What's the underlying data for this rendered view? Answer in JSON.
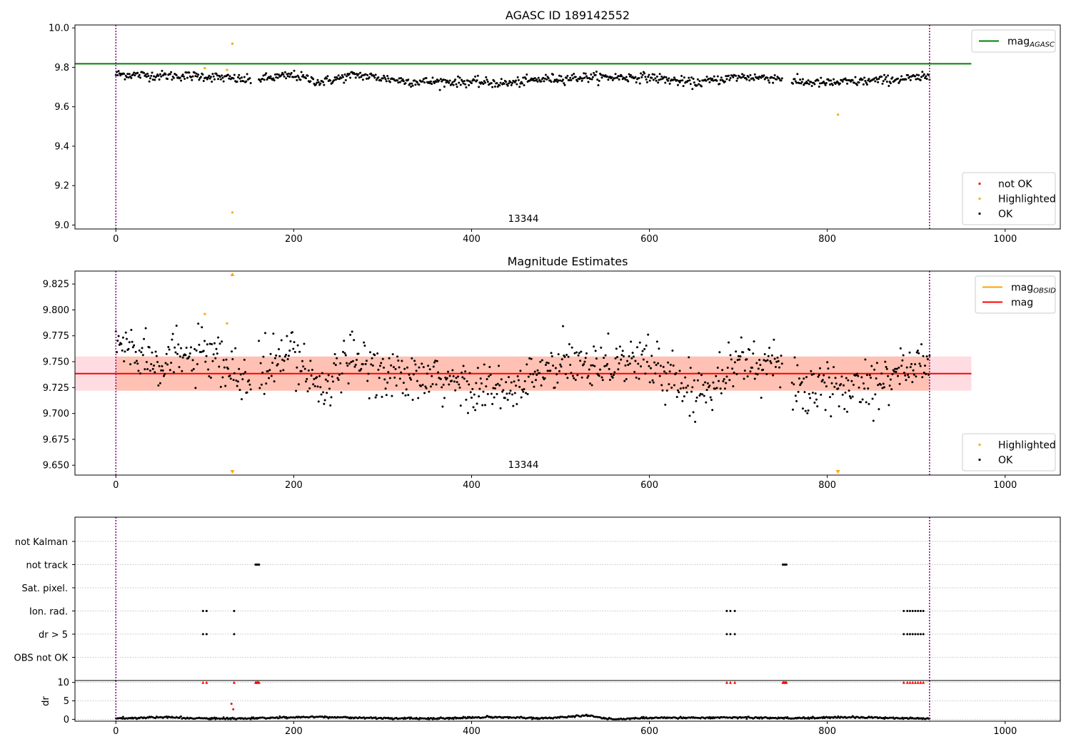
{
  "figure": {
    "background": "#ffffff"
  },
  "colors": {
    "ok": "#000000",
    "highlighted": "#ffa500",
    "not_ok": "#ff0000",
    "agasc_line": "#008000",
    "obsid_line": "#ffa500",
    "mean_line": "#ff0000",
    "band_outer": "#ffc0cb",
    "band_inner": "#ffa07a",
    "obsid_boundary": "#800080",
    "grid": "#b0b0b0"
  },
  "chart_data": [
    {
      "type": "scatter",
      "title": "AGASC ID 189142552",
      "xlim": [
        -46,
        1062
      ],
      "ylim": [
        8.98,
        10.015
      ],
      "xticks": [
        0,
        200,
        400,
        600,
        800,
        1000
      ],
      "yticks": [
        9.0,
        9.2,
        9.4,
        9.6,
        9.8,
        10.0
      ],
      "ytick_labels": [
        "9.0",
        "9.2",
        "9.4",
        "9.6",
        "9.8",
        "10.0"
      ],
      "obsid_label": "13344",
      "obsid_boundaries": [
        0,
        915
      ],
      "mag_agasc": 9.818,
      "mag_agasc_xrange": [
        -46,
        962
      ],
      "ok_series": {
        "name": "OK",
        "x_range": [
          0,
          915
        ],
        "n_points": 900,
        "baseline": 9.743,
        "trend": [
          [
            0,
            9.765
          ],
          [
            50,
            9.758
          ],
          [
            100,
            9.755
          ],
          [
            150,
            9.735
          ],
          [
            200,
            9.76
          ],
          [
            230,
            9.725
          ],
          [
            270,
            9.762
          ],
          [
            330,
            9.728
          ],
          [
            400,
            9.726
          ],
          [
            440,
            9.718
          ],
          [
            480,
            9.74
          ],
          [
            530,
            9.75
          ],
          [
            600,
            9.75
          ],
          [
            650,
            9.72
          ],
          [
            700,
            9.752
          ],
          [
            750,
            9.745
          ],
          [
            760,
            9.728
          ],
          [
            800,
            9.72
          ],
          [
            850,
            9.732
          ],
          [
            915,
            9.75
          ]
        ],
        "scatter": 0.012,
        "gaps": [
          [
            152,
            160
          ],
          [
            750,
            760
          ]
        ]
      },
      "highlighted": [
        {
          "x": 100,
          "y": 9.796
        },
        {
          "x": 125,
          "y": 9.787
        },
        {
          "x": 131,
          "y": 9.92
        },
        {
          "x": 131,
          "y": 9.064
        },
        {
          "x": 812,
          "y": 9.56
        }
      ],
      "legends": [
        {
          "position": "top-right",
          "entries": [
            {
              "label": "mag",
              "sub": "AGASC",
              "kind": "line",
              "color": "#008000"
            }
          ]
        },
        {
          "position": "bottom-right",
          "entries": [
            {
              "label": "not OK",
              "kind": "dot",
              "color": "#ff0000"
            },
            {
              "label": "Highlighted",
              "kind": "dot",
              "color": "#ffa500"
            },
            {
              "label": "OK",
              "kind": "dot",
              "color": "#000000"
            }
          ]
        }
      ]
    },
    {
      "type": "scatter",
      "title": "Magnitude Estimates",
      "xlim": [
        -46,
        1062
      ],
      "ylim": [
        9.6405,
        9.8375
      ],
      "xticks": [
        0,
        200,
        400,
        600,
        800,
        1000
      ],
      "yticks": [
        9.65,
        9.675,
        9.7,
        9.725,
        9.75,
        9.775,
        9.8,
        9.825
      ],
      "ytick_labels": [
        "9.650",
        "9.675",
        "9.700",
        "9.725",
        "9.750",
        "9.775",
        "9.800",
        "9.825"
      ],
      "obsid_label": "13344",
      "obsid_boundaries": [
        0,
        915
      ],
      "mag_mean": 9.7385,
      "mag_obsid": 9.7385,
      "band": [
        9.722,
        9.755
      ],
      "band_xrange": [
        -46,
        962
      ],
      "ok_series": {
        "name": "OK",
        "x_range": [
          0,
          915
        ],
        "n_points": 900,
        "baseline": 9.7385,
        "trend": [
          [
            0,
            9.768
          ],
          [
            50,
            9.752
          ],
          [
            100,
            9.755
          ],
          [
            150,
            9.73
          ],
          [
            200,
            9.76
          ],
          [
            230,
            9.725
          ],
          [
            270,
            9.752
          ],
          [
            330,
            9.732
          ],
          [
            400,
            9.728
          ],
          [
            440,
            9.718
          ],
          [
            480,
            9.74
          ],
          [
            530,
            9.75
          ],
          [
            600,
            9.75
          ],
          [
            650,
            9.72
          ],
          [
            700,
            9.75
          ],
          [
            750,
            9.745
          ],
          [
            760,
            9.728
          ],
          [
            800,
            9.72
          ],
          [
            850,
            9.732
          ],
          [
            915,
            9.75
          ]
        ],
        "scatter": 0.012,
        "gaps": [
          [
            152,
            160
          ],
          [
            750,
            760
          ]
        ]
      },
      "highlighted": [
        {
          "x": 100,
          "y": 9.796
        },
        {
          "x": 125,
          "y": 9.787
        }
      ],
      "offscale_markers": [
        {
          "x": 131,
          "dir": "up",
          "color": "#ffa500"
        },
        {
          "x": 131,
          "dir": "down",
          "color": "#ffa500"
        },
        {
          "x": 812,
          "dir": "down",
          "color": "#ffa500"
        }
      ],
      "legends": [
        {
          "position": "top-right",
          "entries": [
            {
              "label": "mag",
              "sub": "OBSID",
              "kind": "line",
              "color": "#ffa500"
            },
            {
              "label": "mag",
              "kind": "line",
              "color": "#ff0000"
            }
          ]
        },
        {
          "position": "bottom-right",
          "entries": [
            {
              "label": "Highlighted",
              "kind": "dot",
              "color": "#ffa500"
            },
            {
              "label": "OK",
              "kind": "dot",
              "color": "#000000"
            }
          ]
        }
      ]
    },
    {
      "type": "scatter",
      "title": "",
      "xlim": [
        -46,
        1062
      ],
      "obsid_boundaries": [
        0,
        915
      ],
      "flag_rows": [
        "not Kalman",
        "not track",
        "Sat. pixel.",
        "Ion. rad.",
        "dr > 5",
        "OBS not OK"
      ],
      "flags": {
        "not track": [
          [
            157,
            161
          ],
          [
            750,
            754
          ]
        ],
        "Ion. rad.": [
          [
            98,
            102
          ],
          [
            133,
            133
          ],
          [
            687,
            696
          ],
          [
            886,
            908
          ]
        ],
        "dr > 5": [
          [
            98,
            102
          ],
          [
            133,
            133
          ],
          [
            687,
            696
          ],
          [
            886,
            908
          ]
        ]
      },
      "flag_points": {
        "Ion. rad.": [
          98,
          102,
          133,
          687,
          691,
          696,
          886,
          890,
          893,
          896,
          899,
          902,
          905,
          908
        ],
        "dr > 5": [
          98,
          102,
          133,
          687,
          691,
          696,
          886,
          890,
          893,
          896,
          899,
          902,
          905,
          908
        ],
        "not track": [
          157,
          158,
          159,
          160,
          161,
          750,
          751,
          752,
          753,
          754
        ]
      }
    },
    {
      "type": "scatter",
      "title": "",
      "ylabel": "dr",
      "xlim": [
        -46,
        1062
      ],
      "ylim": [
        -0.5,
        10.5
      ],
      "yticks": [
        0,
        5,
        10
      ],
      "ytick_labels": [
        "0",
        "5",
        "10"
      ],
      "xticks": [
        0,
        200,
        400,
        600,
        800,
        1000
      ],
      "obsid_boundaries": [
        0,
        915
      ],
      "dr_ok": {
        "x_range": [
          0,
          915
        ],
        "n_points": 900,
        "trend": [
          [
            0,
            0.2
          ],
          [
            50,
            0.6
          ],
          [
            100,
            0.2
          ],
          [
            150,
            0.2
          ],
          [
            220,
            0.7
          ],
          [
            300,
            0.3
          ],
          [
            360,
            0.2
          ],
          [
            420,
            0.6
          ],
          [
            480,
            0.3
          ],
          [
            530,
            1.0
          ],
          [
            560,
            0.0
          ],
          [
            600,
            0.4
          ],
          [
            700,
            0.5
          ],
          [
            760,
            0.3
          ],
          [
            820,
            0.6
          ],
          [
            915,
            0.2
          ]
        ]
      },
      "dr_capped": [
        98,
        102,
        133,
        157,
        158,
        159,
        160,
        161,
        687,
        691,
        696,
        750,
        751,
        752,
        753,
        754,
        886,
        890,
        893,
        896,
        899,
        902,
        905,
        908
      ],
      "dr_notok": [
        {
          "x": 130,
          "y": 4.2
        },
        {
          "x": 132,
          "y": 2.7
        }
      ]
    }
  ]
}
